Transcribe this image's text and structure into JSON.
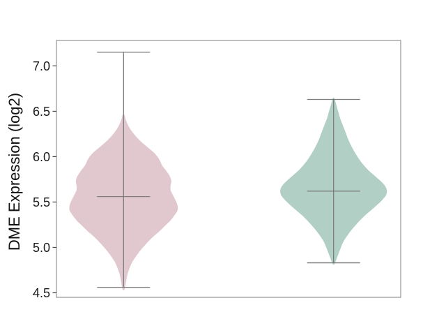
{
  "window": {
    "background": "#ffffff"
  },
  "chart_data": {
    "type": "violin",
    "title": "",
    "xlabel": "",
    "ylabel": "DME Expression (log2)",
    "ylim": [
      4.45,
      7.28
    ],
    "grid": false,
    "legend": "none",
    "x_tick_labels": [],
    "yticks": [
      {
        "value": 7.0,
        "label": "7.0"
      },
      {
        "value": 6.5,
        "label": "6.5"
      },
      {
        "value": 6.0,
        "label": "6.0"
      },
      {
        "value": 5.5,
        "label": "5.5"
      },
      {
        "value": 5.0,
        "label": "5.0"
      },
      {
        "value": 4.5,
        "label": "4.5"
      }
    ],
    "axis_colors": {
      "spine": "#7f7f7f",
      "tick_mark": "#444444",
      "tick_label": "#1a1a1a"
    },
    "series": [
      {
        "name": "left-violin",
        "fill_color": "#e1c7ce",
        "line_color": "#7c7c7c",
        "center_frac": 0.195,
        "median": 5.56,
        "whisker_high": 7.15,
        "whisker_low": 4.56,
        "violin_top": 6.46,
        "violin_bottom": 4.54,
        "profile": [
          [
            6.46,
            0.8
          ],
          [
            6.4,
            3
          ],
          [
            6.33,
            7
          ],
          [
            6.26,
            13
          ],
          [
            6.19,
            21
          ],
          [
            6.12,
            31
          ],
          [
            6.05,
            42
          ],
          [
            6.0,
            48
          ],
          [
            5.95,
            52
          ],
          [
            5.9,
            55
          ],
          [
            5.84,
            61
          ],
          [
            5.78,
            66
          ],
          [
            5.73,
            68
          ],
          [
            5.68,
            67
          ],
          [
            5.63,
            67
          ],
          [
            5.58,
            70
          ],
          [
            5.52,
            74
          ],
          [
            5.46,
            77
          ],
          [
            5.41,
            77
          ],
          [
            5.36,
            73
          ],
          [
            5.3,
            67
          ],
          [
            5.24,
            59
          ],
          [
            5.18,
            51
          ],
          [
            5.12,
            42
          ],
          [
            5.05,
            33
          ],
          [
            4.98,
            25
          ],
          [
            4.91,
            18
          ],
          [
            4.84,
            12
          ],
          [
            4.77,
            8
          ],
          [
            4.7,
            5
          ],
          [
            4.62,
            3
          ],
          [
            4.54,
            1
          ]
        ]
      },
      {
        "name": "right-violin",
        "fill_color": "#b1cfc4",
        "line_color": "#7c7c7c",
        "center_frac": 0.805,
        "median": 5.62,
        "whisker_high": 6.63,
        "whisker_low": 4.83,
        "violin_top": 6.64,
        "violin_bottom": 4.82,
        "profile": [
          [
            6.64,
            0.8
          ],
          [
            6.58,
            3
          ],
          [
            6.5,
            6
          ],
          [
            6.42,
            9
          ],
          [
            6.34,
            13
          ],
          [
            6.26,
            17
          ],
          [
            6.18,
            21
          ],
          [
            6.1,
            26
          ],
          [
            6.02,
            32
          ],
          [
            5.94,
            39
          ],
          [
            5.86,
            48
          ],
          [
            5.79,
            58
          ],
          [
            5.73,
            67
          ],
          [
            5.68,
            73
          ],
          [
            5.63,
            76
          ],
          [
            5.58,
            75
          ],
          [
            5.53,
            70
          ],
          [
            5.47,
            62
          ],
          [
            5.41,
            53
          ],
          [
            5.35,
            44
          ],
          [
            5.28,
            35
          ],
          [
            5.21,
            27
          ],
          [
            5.14,
            20
          ],
          [
            5.07,
            14
          ],
          [
            5.0,
            10
          ],
          [
            4.94,
            7
          ],
          [
            4.89,
            4.5
          ],
          [
            4.82,
            1
          ]
        ]
      }
    ]
  }
}
